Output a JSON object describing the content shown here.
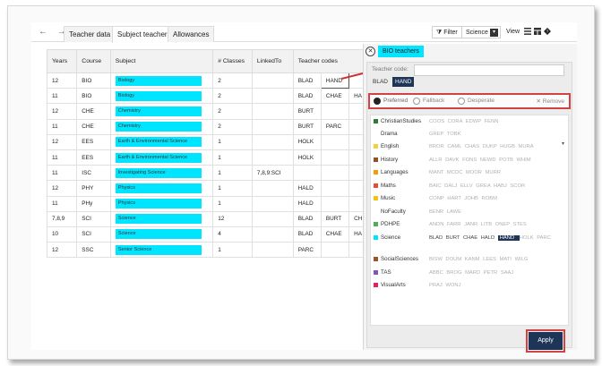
{
  "toolbar": {
    "nav": "← →",
    "tabs": [
      "Teacher data",
      "Subject teachers",
      "Allowances"
    ],
    "active_tab": "Subject teachers",
    "filter_label": "Filter",
    "faculty_select": "Science",
    "view_label": "View"
  },
  "table": {
    "headers": [
      "Years",
      "Course",
      "Subject",
      "# Classes",
      "LinkedTo",
      "Teacher codes"
    ],
    "rows": [
      {
        "years": "12",
        "course": "BIO",
        "subject": "Biology",
        "classes": "2",
        "linked": "",
        "codes": [
          "BLAD",
          "HAND",
          ""
        ]
      },
      {
        "years": "11",
        "course": "BIO",
        "subject": "Biology",
        "classes": "2",
        "linked": "",
        "codes": [
          "BLAD",
          "CHAE",
          "HA"
        ]
      },
      {
        "years": "12",
        "course": "CHE",
        "subject": "Chemistry",
        "classes": "2",
        "linked": "",
        "codes": [
          "BURT",
          "",
          ""
        ]
      },
      {
        "years": "11",
        "course": "CHE",
        "subject": "Chemistry",
        "classes": "2",
        "linked": "",
        "codes": [
          "BURT",
          "PARC",
          ""
        ]
      },
      {
        "years": "12",
        "course": "EES",
        "subject": "Earth & Environmental Science",
        "classes": "1",
        "linked": "",
        "codes": [
          "HOLK",
          "",
          ""
        ]
      },
      {
        "years": "11",
        "course": "EES",
        "subject": "Earth & Environmental Science",
        "classes": "1",
        "linked": "",
        "codes": [
          "HOLK",
          "",
          ""
        ]
      },
      {
        "years": "11",
        "course": "ISC",
        "subject": "Investigating Science",
        "classes": "1",
        "linked": "7,8,9:SCI",
        "codes": [
          "",
          "",
          ""
        ]
      },
      {
        "years": "12",
        "course": "PHY",
        "subject": "Physics",
        "classes": "1",
        "linked": "",
        "codes": [
          "HALD",
          "",
          ""
        ]
      },
      {
        "years": "11",
        "course": "PHy",
        "subject": "Physics",
        "classes": "1",
        "linked": "",
        "codes": [
          "HALD",
          "",
          ""
        ]
      },
      {
        "years": "7,8,9",
        "course": "SCI",
        "subject": "Science",
        "classes": "12",
        "linked": "",
        "codes": [
          "BLAD",
          "BURT",
          "CH"
        ]
      },
      {
        "years": "10",
        "course": "SCI",
        "subject": "Science",
        "classes": "4",
        "linked": "",
        "codes": [
          "BLAD",
          "CHAE",
          "HA"
        ]
      },
      {
        "years": "12",
        "course": "SSC",
        "subject": "Senior Science",
        "classes": "1",
        "linked": "",
        "codes": [
          "PARC",
          "",
          ""
        ]
      }
    ]
  },
  "panel": {
    "title": "BIO teachers",
    "teacher_code_label": "Teacher code:",
    "selected": [
      "BLAD",
      "HAND"
    ],
    "options": {
      "preferred": "Preferred",
      "fallback": "Fallback",
      "desperate": "Desperate",
      "remove": "Remove"
    },
    "apply_label": "Apply",
    "faculties": [
      {
        "name": "ChristianStudies",
        "color": "#2e7d32",
        "codes": "COOS CORA EDWP FENN"
      },
      {
        "name": "Drama",
        "color": "#ffffff",
        "codes": "GREP TOBK"
      },
      {
        "name": "English",
        "color": "#f4d03f",
        "codes": "BROR CAML CHAS DUKP HUGB MURA"
      },
      {
        "name": "History",
        "color": "#8d5524",
        "codes": "ALLR DAVK FONS NEWD POTB WHIM"
      },
      {
        "name": "Languages",
        "color": "#f39c12",
        "codes": "MANT MCDC MOOR MURR"
      },
      {
        "name": "Maths",
        "color": "#e74c3c",
        "codes": "BAIC DALJ ELLV GREA HABJ SCOR"
      },
      {
        "name": "Music",
        "color": "#f1c40f",
        "codes": "CONP HART JOHB ROBM"
      },
      {
        "name": "NoFaculty",
        "color": "#ffffff",
        "codes": "BENR LAWE"
      },
      {
        "name": "PDHPE",
        "color": "#4caf50",
        "codes": "ANDN FARR JANR LITB ONEP STES"
      },
      {
        "name": "Science",
        "color": "#00e5ff",
        "codes": "BLAD BURT CHAE HALD HAND HOLK PARC"
      },
      {
        "name": "SocialSciences",
        "color": "#a0522d",
        "codes": "BISW DOUM KANM LEES MATI WILG"
      },
      {
        "name": "TAS",
        "color": "#7e57c2",
        "codes": "ABBC BROG MARD PETR SAAJ"
      },
      {
        "name": "VisualArts",
        "color": "#e91e63",
        "codes": "PRAJ WONJ"
      }
    ]
  }
}
